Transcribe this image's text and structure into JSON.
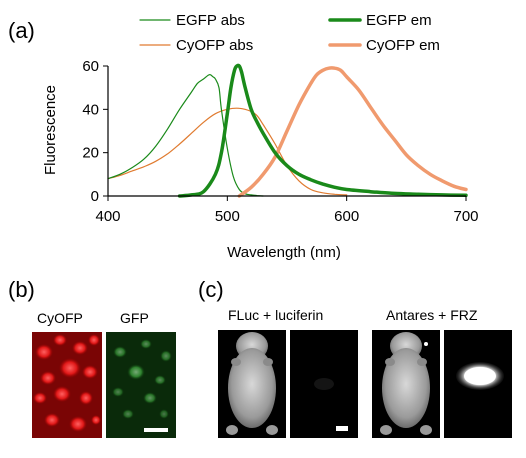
{
  "panels": {
    "a": "(a)",
    "b": "(b)",
    "c": "(c)"
  },
  "chart_data": {
    "type": "line",
    "xlabel": "Wavelength (nm)",
    "ylabel": "Fluorescence",
    "xlim": [
      400,
      700
    ],
    "ylim": [
      0,
      60
    ],
    "xticks": [
      400,
      500,
      600,
      700
    ],
    "yticks": [
      0,
      20,
      40,
      60
    ],
    "grid": false,
    "legend_position": "top",
    "series": [
      {
        "name": "EGFP abs",
        "color": "#1a8a1a",
        "width": 1.2,
        "x": [
          400,
          410,
          420,
          430,
          440,
          450,
          460,
          470,
          475,
          480,
          485,
          488,
          490,
          493,
          495,
          500,
          505,
          510,
          515,
          520,
          525,
          530
        ],
        "y": [
          8,
          10,
          13,
          17,
          23,
          31,
          40,
          48,
          52,
          54,
          56,
          55,
          54,
          50,
          40,
          22,
          9,
          3,
          1,
          0.5,
          0.2,
          0
        ]
      },
      {
        "name": "EGFP em",
        "color": "#1a8a1a",
        "width": 3.5,
        "x": [
          460,
          470,
          480,
          490,
          495,
          500,
          503,
          506,
          508,
          510,
          512,
          515,
          520,
          525,
          530,
          540,
          550,
          560,
          570,
          580,
          590,
          600,
          620,
          640,
          660,
          680,
          700
        ],
        "y": [
          0,
          0.5,
          2,
          10,
          20,
          38,
          50,
          58,
          60,
          60,
          57,
          50,
          40,
          34,
          29,
          20,
          14,
          10,
          7.5,
          5.5,
          4,
          3,
          2,
          1.2,
          0.8,
          0.5,
          0.3
        ]
      },
      {
        "name": "CyOFP abs",
        "color": "#e07b30",
        "width": 1.2,
        "x": [
          400,
          410,
          420,
          430,
          440,
          450,
          460,
          470,
          480,
          490,
          500,
          510,
          520,
          525,
          530,
          540,
          550,
          560,
          570,
          580,
          590,
          600
        ],
        "y": [
          8,
          9.5,
          11.5,
          13.5,
          16,
          19.5,
          24,
          29,
          34,
          38,
          40,
          40.5,
          39,
          37,
          33,
          24,
          14,
          7,
          3,
          1.5,
          0.8,
          0.5
        ]
      },
      {
        "name": "CyOFP em",
        "color": "#f09a6e",
        "width": 3.5,
        "x": [
          510,
          520,
          530,
          540,
          550,
          560,
          570,
          575,
          580,
          585,
          590,
          595,
          600,
          610,
          620,
          630,
          640,
          650,
          660,
          670,
          680,
          690,
          700
        ],
        "y": [
          0,
          4,
          10,
          18,
          30,
          42,
          52,
          56,
          58,
          59,
          59,
          58,
          55,
          49,
          41,
          33,
          26,
          19,
          14,
          10,
          7,
          4.5,
          3
        ]
      }
    ]
  },
  "panel_b": {
    "labels": [
      "CyOFP",
      "GFP"
    ]
  },
  "panel_c": {
    "labels": [
      "FLuc + luciferin",
      "Antares + FRZ"
    ]
  }
}
